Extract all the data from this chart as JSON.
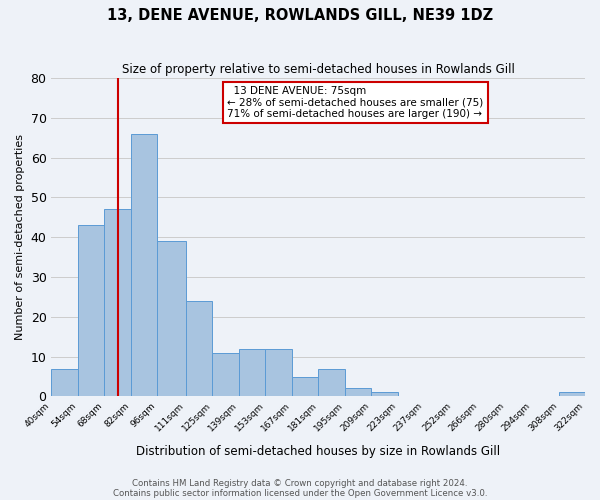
{
  "title": "13, DENE AVENUE, ROWLANDS GILL, NE39 1DZ",
  "subtitle": "Size of property relative to semi-detached houses in Rowlands Gill",
  "xlabel": "Distribution of semi-detached houses by size in Rowlands Gill",
  "ylabel": "Number of semi-detached properties",
  "bar_values": [
    7,
    43,
    47,
    66,
    39,
    24,
    11,
    12,
    12,
    5,
    7,
    2,
    1,
    0,
    0,
    0,
    0,
    0,
    0,
    1
  ],
  "bin_edges": [
    40,
    54,
    68,
    82,
    96,
    111,
    125,
    139,
    153,
    167,
    181,
    195,
    209,
    223,
    237,
    252,
    266,
    280,
    294,
    308,
    322
  ],
  "bin_labels": [
    "40sqm",
    "54sqm",
    "68sqm",
    "82sqm",
    "96sqm",
    "111sqm",
    "125sqm",
    "139sqm",
    "153sqm",
    "167sqm",
    "181sqm",
    "195sqm",
    "209sqm",
    "223sqm",
    "237sqm",
    "252sqm",
    "266sqm",
    "280sqm",
    "294sqm",
    "308sqm",
    "322sqm"
  ],
  "bar_color": "#a8c4e0",
  "bar_edgecolor": "#5b9bd5",
  "property_line_x": 75,
  "ylim": [
    0,
    80
  ],
  "yticks": [
    0,
    10,
    20,
    30,
    40,
    50,
    60,
    70,
    80
  ],
  "annotation_title": "13 DENE AVENUE: 75sqm",
  "annotation_line1": "← 28% of semi-detached houses are smaller (75)",
  "annotation_line2": "71% of semi-detached houses are larger (190) →",
  "annotation_box_color": "#ffffff",
  "annotation_box_edgecolor": "#cc0000",
  "vline_color": "#cc0000",
  "grid_color": "#cccccc",
  "bg_color": "#eef2f8",
  "footer1": "Contains HM Land Registry data © Crown copyright and database right 2024.",
  "footer2": "Contains public sector information licensed under the Open Government Licence v3.0."
}
